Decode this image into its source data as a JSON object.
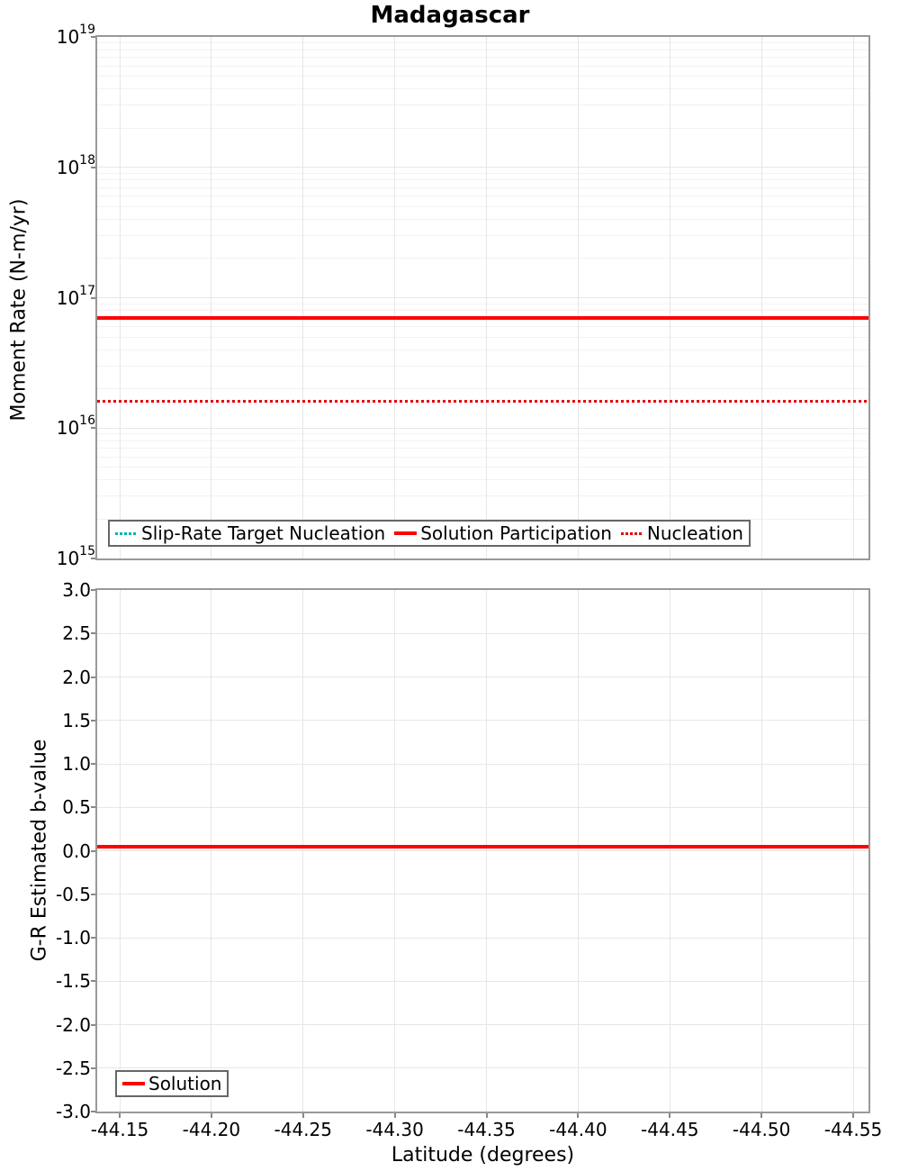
{
  "title": "Madagascar",
  "colors": {
    "solution_red": "#ff0000",
    "nucleation_red": "#e60000",
    "slip_rate_cyan": "#00b2b2",
    "axis_border": "#999999",
    "tick_mark": "#888888",
    "grid_major": "#e7e7e7",
    "grid_minor": "#f2f2f2",
    "legend_border": "#666666",
    "text": "#000000"
  },
  "chart_data": [
    {
      "type": "line",
      "title": "Madagascar",
      "ylabel": "Moment Rate (N-m/yr)",
      "yscale": "log",
      "ylim": [
        1000000000000000.0,
        1e+19
      ],
      "ytick_base": "10",
      "ytick_exponents": [
        19,
        18,
        17,
        16,
        15
      ],
      "grid": "major and log-minor gridlines on",
      "legend_position": "lower left",
      "xlim": [
        -44.14,
        -44.56
      ],
      "x_axis_reversed": true,
      "series": [
        {
          "name": "Slip-Rate Target Nucleation",
          "style": "dotted",
          "color": "#00b2b2",
          "y_value": 1.6e+16,
          "note": "constant line, hidden beneath Nucleation line"
        },
        {
          "name": "Solution Participation",
          "style": "solid",
          "color": "#ff0000",
          "y_value": 7e+16
        },
        {
          "name": "Nucleation",
          "style": "dotted",
          "color": "#e60000",
          "y_value": 1.6e+16
        }
      ]
    },
    {
      "type": "line",
      "ylabel": "G-R Estimated b-value",
      "yscale": "linear",
      "ylim": [
        -3.0,
        3.0
      ],
      "ytick_labels": [
        "3.0",
        "2.5",
        "2.0",
        "1.5",
        "1.0",
        "0.5",
        "0.0",
        "-0.5",
        "-1.0",
        "-1.5",
        "-2.0",
        "-2.5",
        "-3.0"
      ],
      "xlabel": "Latitude (degrees)",
      "xtick_labels": [
        "-44.15",
        "-44.20",
        "-44.25",
        "-44.30",
        "-44.35",
        "-44.40",
        "-44.45",
        "-44.50",
        "-44.55"
      ],
      "xlim": [
        -44.14,
        -44.56
      ],
      "x_axis_reversed": true,
      "grid": "major gridlines on",
      "legend_position": "lower left",
      "series": [
        {
          "name": "Solution",
          "style": "solid",
          "color": "#ff0000",
          "y_value": 0.05
        }
      ]
    }
  ]
}
